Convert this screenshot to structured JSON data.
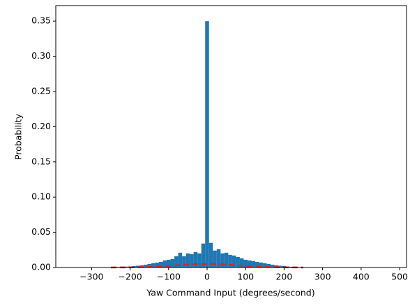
{
  "chart_data": {
    "type": "histogram",
    "x_label": "Yaw Command Input (degrees/second)",
    "y_label": "Probability",
    "color": "#1f77b4",
    "bins": [
      -255,
      -245,
      -235,
      -225,
      -215,
      -205,
      -195,
      -185,
      -175,
      -165,
      -155,
      -145,
      -135,
      -125,
      -115,
      -105,
      -95,
      -85,
      -75,
      -65,
      -55,
      -45,
      -35,
      -25,
      -15,
      -5,
      5,
      15,
      25,
      35,
      45,
      55,
      65,
      75,
      85,
      95,
      105,
      115,
      125,
      135,
      145,
      155,
      165,
      175,
      185,
      195,
      205,
      215,
      225,
      235,
      245,
      255
    ],
    "values": [
      0.0005,
      0.0006,
      0.0008,
      0.001,
      0.0012,
      0.0015,
      0.002,
      0.0025,
      0.003,
      0.004,
      0.005,
      0.006,
      0.007,
      0.008,
      0.01,
      0.011,
      0.012,
      0.016,
      0.021,
      0.016,
      0.02,
      0.019,
      0.022,
      0.02,
      0.034,
      0.35,
      0.035,
      0.024,
      0.026,
      0.02,
      0.021,
      0.018,
      0.017,
      0.015,
      0.013,
      0.011,
      0.01,
      0.009,
      0.008,
      0.007,
      0.006,
      0.005,
      0.004,
      0.003,
      0.0025,
      0.002,
      0.0015,
      0.001,
      0.0008,
      0.0006,
      0.0005
    ],
    "overlay": {
      "type": "line",
      "color": "#d62728",
      "dashed": true,
      "x": [
        -250,
        -225,
        -200,
        -175,
        -150,
        -125,
        -100,
        -75,
        -50,
        -25,
        0,
        25,
        50,
        75,
        100,
        125,
        150,
        175,
        200,
        225,
        250
      ],
      "values": [
        4e-05,
        9e-05,
        0.00022,
        0.00044,
        0.00086,
        0.0015,
        0.0023,
        0.0032,
        0.0041,
        0.0048,
        0.005,
        0.0048,
        0.0041,
        0.0032,
        0.0023,
        0.0015,
        0.00086,
        0.00044,
        0.00022,
        9e-05,
        4e-05
      ]
    },
    "xlim": [
      -393,
      518
    ],
    "xticks": [
      {
        "value": -300,
        "label": "−300"
      },
      {
        "value": -200,
        "label": "−200"
      },
      {
        "value": -100,
        "label": "−100"
      },
      0,
      100,
      200,
      300,
      400,
      500
    ],
    "ylim": [
      0,
      0.372
    ],
    "yticks": [
      {
        "value": 0,
        "label": "0.00"
      },
      0.05,
      {
        "value": 0.1,
        "label": "0.10"
      },
      0.15,
      {
        "value": 0.2,
        "label": "0.20"
      },
      0.25,
      {
        "value": 0.3,
        "label": "0.30"
      },
      0.35
    ]
  }
}
